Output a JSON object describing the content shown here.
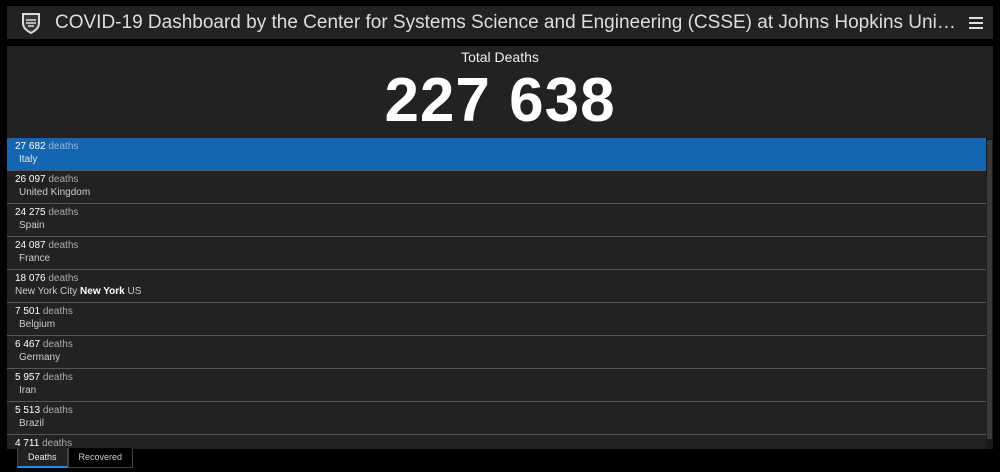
{
  "header": {
    "title": "COVID-19 Dashboard by the Center for Systems Science and Engineering (CSSE) at Johns Hopkins University (JHU)",
    "logo": "jhu-shield-icon",
    "menu_icon": "hamburger-menu-icon"
  },
  "summary": {
    "label": "Total Deaths",
    "value": "227 638"
  },
  "list": {
    "unit": "deaths",
    "rows": [
      {
        "count": "27 682",
        "location": "Italy"
      },
      {
        "count": "26 097",
        "location": "United Kingdom"
      },
      {
        "count": "24 275",
        "location": "Spain"
      },
      {
        "count": "24 087",
        "location": "France"
      },
      {
        "count": "18 076",
        "location": "New York City",
        "state": "New York",
        "country": "US"
      },
      {
        "count": "7 501",
        "location": "Belgium"
      },
      {
        "count": "6 467",
        "location": "Germany"
      },
      {
        "count": "5 957",
        "location": "Iran"
      },
      {
        "count": "5 513",
        "location": "Brazil"
      },
      {
        "count": "4 711",
        "location": ""
      }
    ]
  },
  "tabs": [
    {
      "label": "Deaths",
      "active": true
    },
    {
      "label": "Recovered",
      "active": false
    }
  ],
  "colors": {
    "selected_row": "#1565b0",
    "panel": "#222222",
    "accent": "#1c8fe8"
  }
}
